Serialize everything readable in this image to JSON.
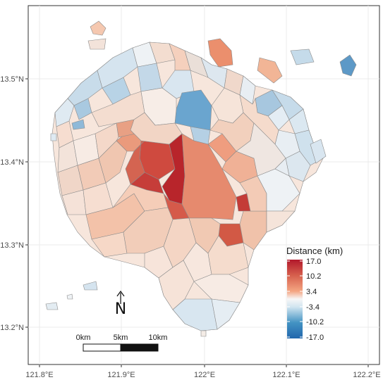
{
  "axes": {
    "x_ticks": [
      "121.8°E",
      "121.9°E",
      "122°E",
      "122.1°E",
      "122.2°E"
    ],
    "y_ticks": [
      "13.5°N",
      "13.4°N",
      "13.3°N",
      "13.2°N"
    ],
    "grid": true,
    "grid_color": "#ebebeb"
  },
  "legend": {
    "title": "Distance (km)",
    "labels": [
      "17.0",
      "10.2",
      "3.4",
      "-3.4",
      "-10.2",
      "-17.0"
    ],
    "colors": [
      "#b2182b",
      "#d6604d",
      "#f4a582",
      "#f7f7f7",
      "#92c5de",
      "#4393c3",
      "#2166ac"
    ],
    "placement": "bottom-right"
  },
  "scale_bar": {
    "labels": [
      "0km",
      "5km",
      "10km"
    ]
  },
  "north_arrow": {
    "label": "N"
  },
  "colors": {
    "border": "#8c8c8c",
    "panel_border": "#333333"
  }
}
